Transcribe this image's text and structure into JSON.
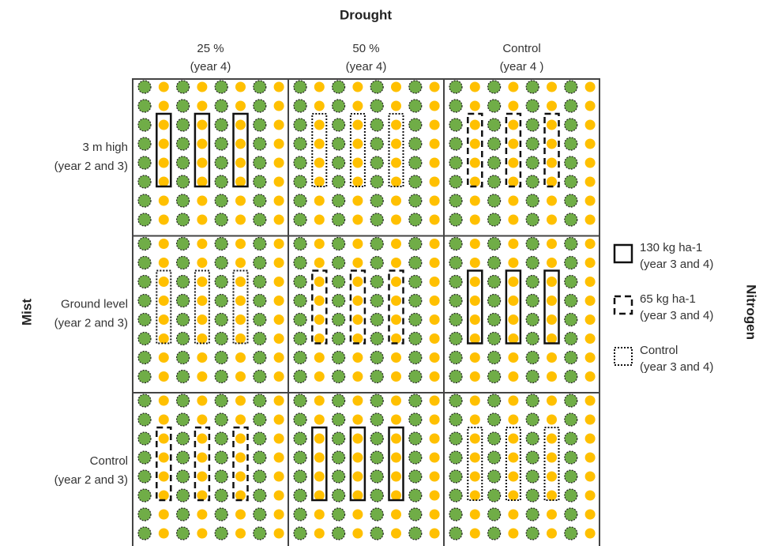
{
  "title": "Drought",
  "mist_label": "Mist",
  "nitrogen_label": "Nitrogen",
  "columns": [
    {
      "label": "25 %",
      "sub": "(year 4)"
    },
    {
      "label": "50 %",
      "sub": "(year 4)"
    },
    {
      "label": "Control",
      "sub": "(year 4 )"
    }
  ],
  "rows": [
    {
      "label": "3 m high",
      "sub": "(year 2 and 3)"
    },
    {
      "label": "Ground level",
      "sub": "(year 2 and 3)"
    },
    {
      "label": "Control",
      "sub": "(year 2 and 3)"
    }
  ],
  "legend": [
    {
      "label": "130 kg ha-1",
      "sub": "(year 3 and 4)"
    },
    {
      "label": "65 kg ha-1",
      "sub": "(year 3 and 4)"
    },
    {
      "label": "Control",
      "sub": "(year 3 and 4)"
    }
  ]
}
